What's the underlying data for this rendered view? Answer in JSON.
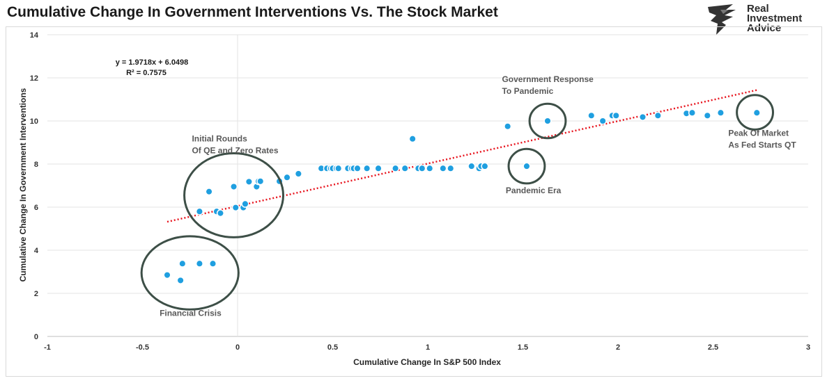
{
  "title": "Cumulative Change In Government Interventions Vs. The Stock Market",
  "logo": {
    "line1": "Real",
    "line2": "Investment",
    "line3": "Advice"
  },
  "chart_data": {
    "type": "scatter",
    "xlabel": "Cumulative Change In S&P 500 Index",
    "ylabel": "Cumulative Change In Government Interventions",
    "xlim": [
      -1,
      3
    ],
    "ylim": [
      0,
      14
    ],
    "xticks": [
      "-1",
      "-0.5",
      "0",
      "0.5",
      "1",
      "1.5",
      "2",
      "2.5",
      "3"
    ],
    "yticks": [
      "0",
      "2",
      "4",
      "6",
      "8",
      "10",
      "12",
      "14"
    ],
    "grid": "horizontal",
    "trendline": {
      "slope": 1.9718,
      "intercept": 6.0498,
      "x_range": [
        -0.37,
        2.73
      ],
      "equation_text": "y = 1.9718x + 6.0498",
      "r2_text": "R² = 0.7575",
      "color": "#e8141e"
    },
    "point_color": "#1f9fe0",
    "points": [
      [
        -0.37,
        2.85
      ],
      [
        -0.3,
        2.6
      ],
      [
        -0.29,
        3.38
      ],
      [
        -0.2,
        3.38
      ],
      [
        -0.13,
        3.38
      ],
      [
        -0.2,
        5.8
      ],
      [
        -0.15,
        6.72
      ],
      [
        -0.11,
        5.8
      ],
      [
        -0.09,
        5.72
      ],
      [
        -0.02,
        6.95
      ],
      [
        -0.01,
        5.98
      ],
      [
        0.03,
        5.98
      ],
      [
        0.04,
        6.15
      ],
      [
        0.06,
        7.18
      ],
      [
        0.1,
        6.95
      ],
      [
        0.11,
        7.2
      ],
      [
        0.12,
        7.2
      ],
      [
        0.22,
        7.2
      ],
      [
        0.26,
        7.38
      ],
      [
        0.32,
        7.55
      ],
      [
        0.44,
        7.8
      ],
      [
        0.47,
        7.8
      ],
      [
        0.49,
        7.8
      ],
      [
        0.5,
        7.8
      ],
      [
        0.52,
        7.8
      ],
      [
        0.53,
        7.8
      ],
      [
        0.58,
        7.8
      ],
      [
        0.6,
        7.8
      ],
      [
        0.61,
        7.8
      ],
      [
        0.63,
        7.8
      ],
      [
        0.68,
        7.8
      ],
      [
        0.74,
        7.8
      ],
      [
        0.83,
        7.8
      ],
      [
        0.88,
        7.8
      ],
      [
        0.92,
        9.17
      ],
      [
        0.95,
        7.8
      ],
      [
        0.97,
        7.8
      ],
      [
        1.01,
        7.8
      ],
      [
        1.08,
        7.8
      ],
      [
        1.12,
        7.8
      ],
      [
        1.23,
        7.9
      ],
      [
        1.27,
        7.8
      ],
      [
        1.28,
        7.9
      ],
      [
        1.3,
        7.9
      ],
      [
        1.42,
        9.75
      ],
      [
        1.52,
        7.9
      ],
      [
        1.63,
        10.0
      ],
      [
        1.86,
        10.25
      ],
      [
        1.92,
        10.0
      ],
      [
        1.97,
        10.25
      ],
      [
        1.99,
        10.25
      ],
      [
        2.13,
        10.18
      ],
      [
        2.21,
        10.25
      ],
      [
        2.36,
        10.35
      ],
      [
        2.39,
        10.38
      ],
      [
        2.47,
        10.25
      ],
      [
        2.54,
        10.38
      ],
      [
        2.73,
        10.38
      ]
    ],
    "annotations": [
      {
        "lines": [
          "Financial Crisis"
        ],
        "x": -0.41,
        "y": 0.95,
        "anchor": "start"
      },
      {
        "lines": [
          "Initial Rounds",
          "Of QE and Zero Rates"
        ],
        "x": -0.24,
        "y": 9.05,
        "anchor": "start"
      },
      {
        "lines": [
          "Government Response",
          "To Pandemic"
        ],
        "x": 1.39,
        "y": 11.8,
        "anchor": "start"
      },
      {
        "lines": [
          "Pandemic Era"
        ],
        "x": 1.41,
        "y": 6.65,
        "anchor": "start"
      },
      {
        "lines": [
          "Peak Of Market",
          "As Fed Starts QT"
        ],
        "x": 2.58,
        "y": 9.3,
        "anchor": "start"
      }
    ],
    "circles": [
      {
        "cx": -0.25,
        "cy": 2.95,
        "rx": 0.255,
        "ry": 1.7
      },
      {
        "cx": -0.02,
        "cy": 6.55,
        "rx": 0.26,
        "ry": 1.95
      },
      {
        "cx": 1.63,
        "cy": 10.0,
        "rx": 0.095,
        "ry": 0.8
      },
      {
        "cx": 1.52,
        "cy": 7.9,
        "rx": 0.095,
        "ry": 0.8
      },
      {
        "cx": 2.72,
        "cy": 10.4,
        "rx": 0.095,
        "ry": 0.8
      }
    ]
  }
}
